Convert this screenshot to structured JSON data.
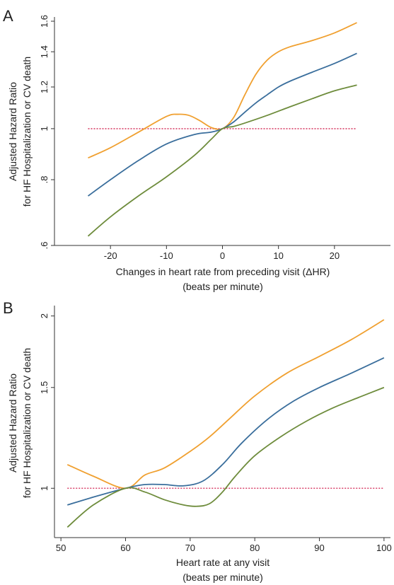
{
  "chart_data": [
    {
      "type": "line",
      "panel_label": "A",
      "xlabel_line1": "Changes in heart rate from preceding visit (ΔHR)",
      "xlabel_line2": "(beats per minute)",
      "ylabel_line1": "Adjusted Hazard Ratio",
      "ylabel_line2": "for HF Hospitalization or CV death",
      "xlim": [
        -30,
        30
      ],
      "ylim": [
        0.6,
        1.6
      ],
      "y_scale": "log",
      "xticks": [
        -20,
        -10,
        0,
        10,
        20
      ],
      "xtick_labels": [
        "-20",
        "-10",
        "0",
        "10",
        "20"
      ],
      "yticks": [
        0.6,
        0.8,
        1,
        1.2,
        1.4,
        1.6
      ],
      "ytick_labels": [
        ".6",
        ".8",
        "1",
        "1.2",
        "1.4",
        "1.6"
      ],
      "reference_line": {
        "y": 1,
        "x": [
          -24,
          24
        ],
        "color": "#d8436a"
      },
      "series": [
        {
          "role": "upper",
          "color": "#f0a030",
          "x": [
            -24,
            -20,
            -15,
            -10,
            -8,
            -6,
            -4,
            -2,
            0,
            2,
            4,
            6,
            8,
            10,
            12,
            16,
            20,
            24
          ],
          "y": [
            0.88,
            0.92,
            0.985,
            1.055,
            1.065,
            1.06,
            1.035,
            1.005,
            1.0,
            1.05,
            1.16,
            1.27,
            1.35,
            1.4,
            1.43,
            1.47,
            1.52,
            1.59
          ]
        },
        {
          "role": "estimate",
          "color": "#3a6e9c",
          "x": [
            -24,
            -20,
            -15,
            -10,
            -5,
            -2,
            0,
            2,
            4,
            6,
            8,
            10,
            12,
            16,
            20,
            24
          ],
          "y": [
            0.745,
            0.8,
            0.87,
            0.935,
            0.975,
            0.985,
            1.0,
            1.03,
            1.075,
            1.12,
            1.16,
            1.2,
            1.23,
            1.28,
            1.33,
            1.39
          ]
        },
        {
          "role": "lower",
          "color": "#6e8c3c",
          "x": [
            -24,
            -20,
            -15,
            -10,
            -5,
            -2,
            0,
            2,
            4,
            8,
            12,
            16,
            20,
            24
          ],
          "y": [
            0.625,
            0.68,
            0.745,
            0.81,
            0.89,
            0.955,
            1.0,
            1.01,
            1.025,
            1.06,
            1.1,
            1.14,
            1.18,
            1.21
          ]
        }
      ]
    },
    {
      "type": "line",
      "panel_label": "B",
      "xlabel_line1": "Heart rate at any visit",
      "xlabel_line2": "(beats per minute)",
      "ylabel_line1": "Adjusted Hazard Ratio",
      "ylabel_line2": "for HF Hospitalization or CV death",
      "xlim": [
        49,
        101
      ],
      "ylim": [
        0.82,
        2.05
      ],
      "y_scale": "log",
      "xticks": [
        50,
        60,
        70,
        80,
        90,
        100
      ],
      "xtick_labels": [
        "50",
        "60",
        "70",
        "80",
        "90",
        "100"
      ],
      "yticks": [
        1,
        1.5,
        2
      ],
      "ytick_labels": [
        "1",
        "1.5",
        "2"
      ],
      "reference_line": {
        "y": 1,
        "x": [
          51,
          100
        ],
        "color": "#d8436a"
      },
      "series": [
        {
          "role": "upper",
          "color": "#f0a030",
          "x": [
            51,
            55,
            60,
            63,
            66,
            70,
            73,
            76,
            80,
            85,
            90,
            95,
            100
          ],
          "y": [
            1.1,
            1.05,
            1.0,
            1.055,
            1.085,
            1.16,
            1.23,
            1.32,
            1.45,
            1.59,
            1.7,
            1.82,
            1.97
          ]
        },
        {
          "role": "estimate",
          "color": "#3a6e9c",
          "x": [
            51,
            55,
            60,
            63,
            66,
            69,
            72,
            75,
            78,
            82,
            86,
            90,
            95,
            100
          ],
          "y": [
            0.935,
            0.965,
            1.0,
            1.015,
            1.015,
            1.01,
            1.03,
            1.1,
            1.2,
            1.32,
            1.42,
            1.5,
            1.59,
            1.69
          ]
        },
        {
          "role": "lower",
          "color": "#6e8c3c",
          "x": [
            51,
            55,
            60,
            63,
            66,
            69,
            71,
            73,
            75,
            77,
            80,
            84,
            88,
            92,
            96,
            100
          ],
          "y": [
            0.855,
            0.935,
            1.0,
            0.985,
            0.955,
            0.935,
            0.93,
            0.94,
            0.985,
            1.05,
            1.14,
            1.23,
            1.31,
            1.38,
            1.44,
            1.5
          ]
        }
      ]
    }
  ]
}
